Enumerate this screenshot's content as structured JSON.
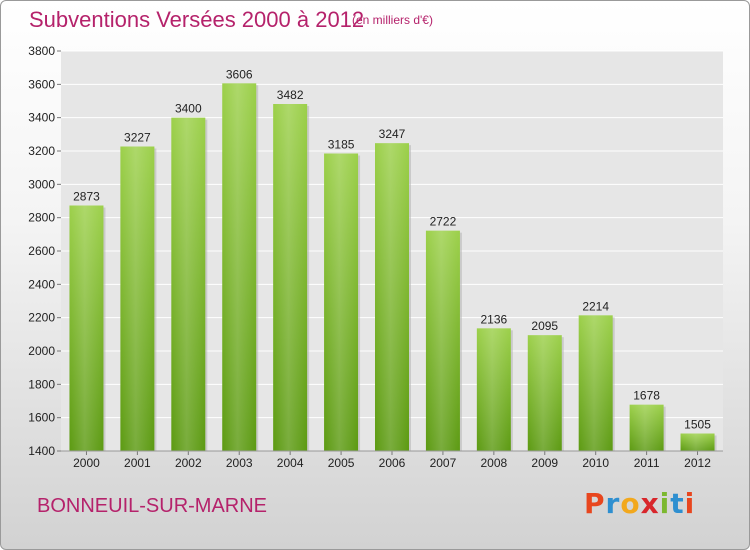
{
  "header": {
    "title": "Subventions Versées 2000 à 2012",
    "subtitle": "(en milliers d'€)"
  },
  "footer": {
    "city": "BONNEUIL-SUR-MARNE",
    "logo": {
      "letters": [
        "P",
        "r",
        "o",
        "x",
        "i",
        "t",
        "i"
      ],
      "colors": [
        "#e8461e",
        "#2e8fd0",
        "#f2a81d",
        "#d8262b",
        "#7cb82f",
        "#2e8fd0",
        "#e8461e"
      ]
    }
  },
  "chart_data": {
    "type": "bar",
    "categories": [
      "2000",
      "2001",
      "2002",
      "2003",
      "2004",
      "2005",
      "2006",
      "2007",
      "2008",
      "2009",
      "2010",
      "2011",
      "2012"
    ],
    "values": [
      2873,
      3227,
      3400,
      3606,
      3482,
      3185,
      3247,
      2722,
      2136,
      2095,
      2214,
      1678,
      1505
    ],
    "title": "Subventions Versées 2000 à 2012",
    "xlabel": "",
    "ylabel": "",
    "ylim": [
      1400,
      3800
    ],
    "yticks": [
      1400,
      1600,
      1800,
      2000,
      2200,
      2400,
      2600,
      2800,
      3000,
      3200,
      3400,
      3600,
      3800
    ],
    "grid": true,
    "bar_color": "#7ab82e",
    "plot_background": "#e6e6e6"
  }
}
